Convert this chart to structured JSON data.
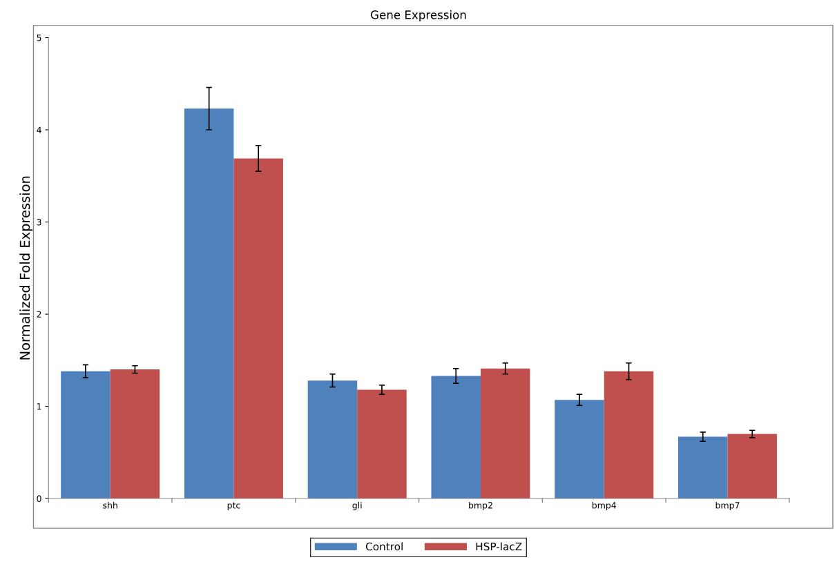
{
  "chart_data": {
    "type": "bar",
    "title": "Gene Expression",
    "ylabel": "Normalized Fold Expression",
    "categories": [
      "shh",
      "ptc",
      "gli",
      "bmp2",
      "bmp4",
      "bmp7"
    ],
    "series": [
      {
        "name": "Control",
        "color": "#4f81bd",
        "values": [
          1.38,
          4.23,
          1.28,
          1.33,
          1.07,
          0.67
        ],
        "errors": [
          0.07,
          0.23,
          0.07,
          0.08,
          0.06,
          0.05
        ]
      },
      {
        "name": "HSP-lacZ",
        "color": "#c0504d",
        "values": [
          1.4,
          3.69,
          1.18,
          1.41,
          1.38,
          0.7
        ],
        "errors": [
          0.04,
          0.14,
          0.05,
          0.06,
          0.09,
          0.04
        ]
      }
    ],
    "ylim": [
      0,
      5
    ],
    "yticks": [
      0,
      1,
      2,
      3,
      4,
      5
    ],
    "grid": false,
    "legend": "bottom"
  }
}
